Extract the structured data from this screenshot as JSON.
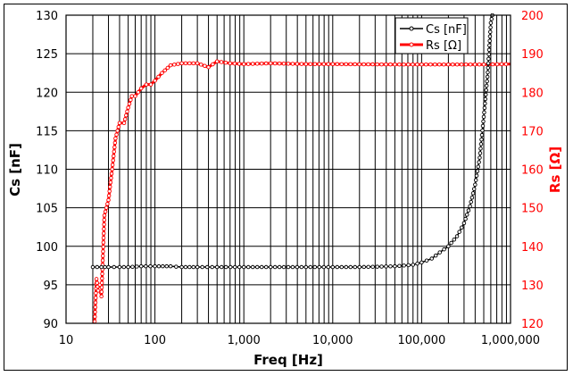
{
  "chart_data": {
    "type": "line",
    "title": "",
    "xlabel": "Freq [Hz]",
    "ylabel": "Cs [nF]",
    "y2label": "Rs [Ω]",
    "xscale": "log",
    "xlim": [
      10,
      1000000
    ],
    "ylim": [
      90,
      130
    ],
    "y2lim": [
      120,
      200
    ],
    "x_ticks": [
      "10",
      "100",
      "1,000",
      "10,000",
      "100,000",
      "1,000,000"
    ],
    "y_ticks": [
      "90",
      "95",
      "100",
      "105",
      "110",
      "115",
      "120",
      "125",
      "130"
    ],
    "y2_ticks": [
      "120",
      "130",
      "140",
      "150",
      "160",
      "170",
      "180",
      "190",
      "200"
    ],
    "grid": true,
    "legend_position": "upper right",
    "series": [
      {
        "name": "Cs [nF]",
        "axis": "left",
        "color": "#000000",
        "x": [
          20,
          25,
          30,
          40,
          50,
          70,
          100,
          150,
          200,
          300,
          500,
          1000,
          2000,
          5000,
          10000,
          20000,
          50000,
          80000,
          100000,
          130000,
          160000,
          200000,
          250000,
          300000,
          350000,
          400000,
          450000,
          500000,
          550000,
          600000,
          650000
        ],
        "values": [
          97.3,
          97.3,
          97.3,
          97.3,
          97.3,
          97.4,
          97.4,
          97.4,
          97.3,
          97.3,
          97.3,
          97.3,
          97.3,
          97.3,
          97.3,
          97.3,
          97.4,
          97.6,
          97.9,
          98.4,
          99.2,
          100.0,
          101.3,
          103.0,
          105.2,
          108.0,
          111.5,
          116.8,
          122.0,
          129.0,
          131.0
        ]
      },
      {
        "name": "Rs [Ω]",
        "axis": "right",
        "color": "#ff0000",
        "x": [
          21,
          22,
          23,
          24,
          25,
          27,
          30,
          33,
          36,
          40,
          45,
          50,
          55,
          60,
          70,
          80,
          90,
          100,
          120,
          150,
          200,
          300,
          400,
          500,
          700,
          1000,
          2000,
          5000,
          10000,
          50000,
          100000,
          500000,
          1000000
        ],
        "values": [
          120.5,
          131.5,
          128.5,
          130.0,
          127.0,
          148.0,
          152.0,
          160.0,
          168.0,
          172.0,
          172.0,
          176.0,
          179.0,
          179.0,
          181.0,
          182.0,
          182.0,
          183.0,
          185.0,
          187.0,
          187.5,
          187.5,
          186.5,
          188.0,
          187.5,
          187.3,
          187.5,
          187.3,
          187.3,
          187.2,
          187.2,
          187.2,
          187.3
        ]
      }
    ]
  },
  "legend": {
    "items": [
      {
        "label": "Cs [nF]",
        "color": "#000000"
      },
      {
        "label": "Rs [Ω]",
        "color": "#ff0000"
      }
    ]
  }
}
